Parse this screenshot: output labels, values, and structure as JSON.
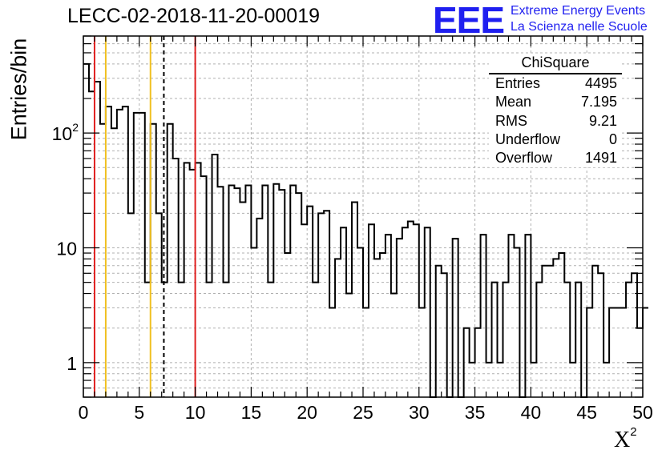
{
  "title": "LECC-02-2018-11-20-00019",
  "logo": {
    "text": "EEE",
    "line1": "Extreme Energy Events",
    "line2": "La Scienza nelle Scuole",
    "color": "#1f1ff0"
  },
  "chart_data": {
    "type": "histogram",
    "xlabel": "X",
    "xlabel_superscript": "2",
    "ylabel": "Entries/bin",
    "xlim": [
      0,
      50
    ],
    "ylim": [
      0.5,
      700
    ],
    "yscale": "log",
    "grid": true,
    "bin_width": 0.5,
    "x_ticks": [
      0,
      5,
      10,
      15,
      20,
      25,
      30,
      35,
      40,
      45,
      50
    ],
    "y_tick_labels": [
      {
        "value": 1,
        "base": "1"
      },
      {
        "value": 10,
        "base": "10"
      },
      {
        "value": 100,
        "base": "10",
        "exponent": "2"
      }
    ],
    "values": [
      400,
      230,
      280,
      120,
      170,
      110,
      160,
      170,
      20,
      150,
      150,
      5,
      120,
      20,
      5,
      120,
      60,
      5,
      55,
      48,
      55,
      42,
      5,
      65,
      34,
      5,
      35,
      33,
      25,
      35,
      10,
      18,
      35,
      5,
      36,
      32,
      9,
      35,
      30,
      16,
      23,
      5,
      20,
      21,
      3,
      8,
      15,
      4,
      25,
      10,
      3,
      16,
      8,
      9,
      13,
      4,
      12,
      15,
      17,
      16,
      3,
      15,
      0.5,
      7,
      6,
      0.5,
      12,
      0.5,
      2,
      1,
      2,
      13,
      1,
      5,
      1,
      5,
      13,
      10,
      0.5,
      13,
      1,
      5,
      7,
      7,
      8,
      9,
      5,
      1,
      5,
      0.5,
      3,
      7,
      6,
      1,
      3,
      3,
      3,
      5,
      6,
      2,
      3
    ],
    "vertical_lines": [
      {
        "x": 1,
        "color": "#e02020",
        "style": "solid"
      },
      {
        "x": 2,
        "color": "#f0c020",
        "style": "solid"
      },
      {
        "x": 6,
        "color": "#f0c020",
        "style": "solid"
      },
      {
        "x": 7.195,
        "color": "#000000",
        "style": "dashed"
      },
      {
        "x": 10,
        "color": "#e02020",
        "style": "solid"
      }
    ],
    "stats": {
      "title": "ChiSquare",
      "entries_label": "Entries",
      "entries": "4495",
      "mean_label": "Mean",
      "mean": "7.195",
      "rms_label": "RMS",
      "rms": "9.21",
      "underflow_label": "Underflow",
      "underflow": "0",
      "overflow_label": "Overflow",
      "overflow": "1491"
    }
  }
}
